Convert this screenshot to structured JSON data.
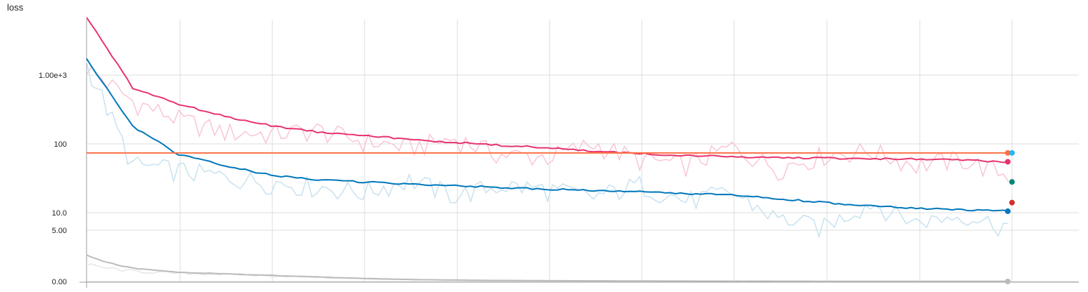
{
  "chart_data": {
    "type": "line",
    "title": "loss",
    "y_scale": "log-like (symlog: linear near 0)",
    "y_tick_labels": [
      "1.00e+3",
      "100",
      "10.0",
      "5.00",
      "0.00"
    ],
    "y_tick_values": [
      1000,
      100,
      10,
      5,
      0
    ],
    "grid": true,
    "legend": "none",
    "x": [
      0,
      0.05,
      0.1,
      0.15,
      0.2,
      0.25,
      0.3,
      0.35,
      0.4,
      0.45,
      0.5,
      0.55,
      0.6,
      0.65,
      0.7,
      0.75,
      0.8,
      0.85,
      0.9,
      0.95,
      1.0
    ],
    "series": [
      {
        "color": "#e8336d",
        "raw_color": "#f8c6d6",
        "values": [
          7000,
          650,
          380,
          250,
          185,
          150,
          135,
          115,
          105,
          95,
          88,
          78,
          72,
          68,
          65,
          63,
          62,
          61,
          60,
          58,
          55
        ],
        "raw_values": [
          1300,
          420,
          230,
          150,
          140,
          160,
          110,
          90,
          120,
          70,
          65,
          100,
          60,
          50,
          90,
          45,
          70,
          80,
          50,
          60,
          35
        ]
      },
      {
        "color": "#0077bb",
        "raw_color": "#c8e2f0",
        "values": [
          1700,
          180,
          70,
          48,
          35,
          30,
          28,
          26,
          25,
          23,
          22,
          21,
          20,
          19,
          18,
          16,
          14,
          12.5,
          11.5,
          11,
          10.5
        ],
        "raw_values": [
          1500,
          50,
          42,
          33,
          28,
          24,
          20,
          30,
          18,
          25,
          22,
          17,
          26,
          15,
          20,
          8,
          6,
          14,
          7,
          9,
          6
        ]
      },
      {
        "color": "#ff7043",
        "values": [
          74,
          74,
          74,
          74,
          74,
          74,
          74,
          74,
          74,
          74,
          74,
          74,
          74,
          74,
          74,
          74,
          74,
          74,
          74,
          74,
          74
        ]
      },
      {
        "color": "#bbbbbb",
        "raw_color": "#e6e6e6",
        "values": [
          2.6,
          1.3,
          0.9,
          0.75,
          0.6,
          0.45,
          0.3,
          0.2,
          0.14,
          0.1,
          0.08,
          0.06,
          0.05,
          0.04,
          0.03,
          0.03,
          0.02,
          0.02,
          0.02,
          0.02,
          0.02
        ],
        "raw_values": [
          1.6,
          1.0,
          0.8,
          0.7,
          0.55,
          0.4,
          0.25,
          0.18,
          0.12,
          0.09,
          0.07,
          0.05,
          0.04,
          0.04,
          0.03,
          0.03,
          0.02,
          0.02,
          0.02,
          0.02,
          0.02
        ]
      }
    ],
    "end_markers": [
      {
        "color": "#ff7043",
        "value": 74
      },
      {
        "color": "#29b6f6",
        "value": 74
      },
      {
        "color": "#e8336d",
        "value": 55
      },
      {
        "color": "#00897b",
        "value": 28
      },
      {
        "color": "#d32f2f",
        "value": 14
      },
      {
        "color": "#0077bb",
        "value": 10.5
      },
      {
        "color": "#bbbbbb",
        "value": 0
      }
    ]
  }
}
